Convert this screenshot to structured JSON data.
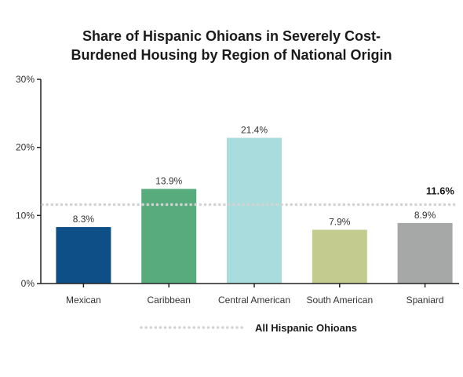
{
  "chart_data": {
    "type": "bar",
    "title_line1": "Share of Hispanic Ohioans in Severely Cost-",
    "title_line2": "Burdened Housing by Region of National Origin",
    "categories": [
      "Mexican",
      "Caribbean",
      "Central American",
      "South American",
      "Spaniard"
    ],
    "values": [
      8.3,
      13.9,
      21.4,
      7.9,
      8.9
    ],
    "value_labels": [
      "8.3%",
      "13.9%",
      "21.4%",
      "7.9%",
      "8.9%"
    ],
    "colors": [
      "#0d4f86",
      "#57ab7d",
      "#a9dcdc",
      "#c3cc8e",
      "#a5a8a6"
    ],
    "y_ticks": [
      0,
      10,
      20,
      30
    ],
    "y_tick_labels": [
      "0%",
      "10%",
      "20%",
      "30%"
    ],
    "ylim": [
      0,
      30
    ],
    "grid": false,
    "reference_line": {
      "value": 11.6,
      "label": "11.6%",
      "name": "All Hispanic Ohioans",
      "color": "#d3d3d3"
    },
    "legend_position": "bottom"
  }
}
